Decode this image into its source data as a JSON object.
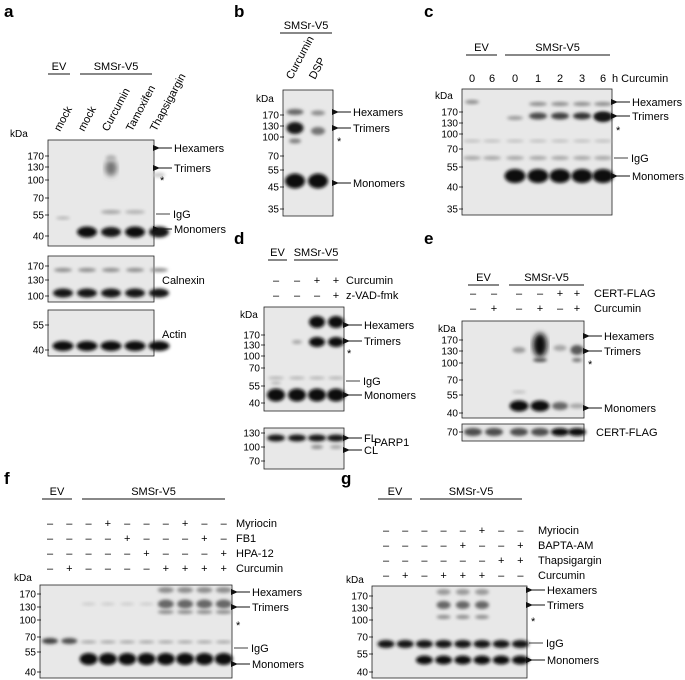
{
  "panels": {
    "a": {
      "label": "a",
      "groups": [
        "EV",
        "SMSr-V5"
      ],
      "lanes": [
        "mock",
        "mock",
        "Curcumin",
        "Tamoxifen",
        "Thapsigargin"
      ],
      "kda": "kDa",
      "ticks_main": [
        "170",
        "130",
        "100",
        "70",
        "55",
        "40"
      ],
      "bands": [
        "Hexamers",
        "Trimers",
        "*",
        "IgG",
        "Monomers"
      ],
      "sub1_ticks": [
        "170",
        "130",
        "100"
      ],
      "sub1_label": "Calnexin",
      "sub2_ticks": [
        "55",
        "40"
      ],
      "sub2_label": "Actin"
    },
    "b": {
      "label": "b",
      "group": "SMSr-V5",
      "lanes": [
        "Curcumin",
        "DSP"
      ],
      "kda": "kDa",
      "ticks": [
        "170",
        "130",
        "100",
        "70",
        "55",
        "45",
        "35"
      ],
      "bands": [
        "Hexamers",
        "Trimers",
        "*",
        "Monomers"
      ]
    },
    "c": {
      "label": "c",
      "groups": [
        "EV",
        "SMSr-V5"
      ],
      "times": [
        "0",
        "6",
        "0",
        "1",
        "2",
        "3",
        "6"
      ],
      "time_label": "h Curcumin",
      "kda": "kDa",
      "ticks": [
        "170",
        "130",
        "100",
        "70",
        "55",
        "40",
        "35"
      ],
      "bands": [
        "Hexamers",
        "Trimers",
        "*",
        "IgG",
        "Monomers"
      ]
    },
    "d": {
      "label": "d",
      "groups": [
        "EV",
        "SMSr-V5"
      ],
      "conditions": [
        {
          "name": "Curcumin",
          "signs": [
            "–",
            "–",
            "+",
            "+"
          ]
        },
        {
          "name": "z-VAD-fmk",
          "signs": [
            "–",
            "–",
            "–",
            "+"
          ]
        }
      ],
      "kda": "kDa",
      "ticks": [
        "170",
        "130",
        "100",
        "70",
        "55",
        "40"
      ],
      "bands": [
        "Hexamers",
        "Trimers",
        "*",
        "IgG",
        "Monomers"
      ],
      "sub_ticks": [
        "130",
        "100",
        "70"
      ],
      "sub_bands": [
        "FL",
        "CL"
      ],
      "sub_label": "PARP1"
    },
    "e": {
      "label": "e",
      "groups": [
        "EV",
        "SMSr-V5"
      ],
      "conditions": [
        {
          "name": "CERT-FLAG",
          "signs": [
            "–",
            "–",
            "–",
            "–",
            "+",
            "+"
          ]
        },
        {
          "name": "Curcumin",
          "signs": [
            "–",
            "+",
            "–",
            "+",
            "–",
            "+"
          ]
        }
      ],
      "kda": "kDa",
      "ticks": [
        "170",
        "130",
        "100",
        "70",
        "55",
        "40"
      ],
      "bands": [
        "Hexamers",
        "Trimers",
        "*",
        "Monomers"
      ],
      "sub_ticks": [
        "70"
      ],
      "sub_label": "CERT-FLAG"
    },
    "f": {
      "label": "f",
      "groups": [
        "EV",
        "SMSr-V5"
      ],
      "conditions": [
        {
          "name": "Myriocin",
          "signs": [
            "–",
            "–",
            "–",
            "+",
            "–",
            "–",
            "–",
            "+",
            "–",
            "–"
          ]
        },
        {
          "name": "FB1",
          "signs": [
            "–",
            "–",
            "–",
            "–",
            "+",
            "–",
            "–",
            "–",
            "+",
            "–"
          ]
        },
        {
          "name": "HPA-12",
          "signs": [
            "–",
            "–",
            "–",
            "–",
            "–",
            "+",
            "–",
            "–",
            "–",
            "+"
          ]
        },
        {
          "name": "Curcumin",
          "signs": [
            "–",
            "+",
            "–",
            "–",
            "–",
            "–",
            "+",
            "+",
            "+",
            "+"
          ]
        }
      ],
      "kda": "kDa",
      "ticks": [
        "170",
        "130",
        "100",
        "70",
        "55",
        "40"
      ],
      "bands": [
        "Hexamers",
        "Trimers",
        "*",
        "IgG",
        "Monomers"
      ]
    },
    "g": {
      "label": "g",
      "groups": [
        "EV",
        "SMSr-V5"
      ],
      "conditions": [
        {
          "name": "Myriocin",
          "signs": [
            "–",
            "–",
            "–",
            "–",
            "–",
            "+",
            "–",
            "–"
          ]
        },
        {
          "name": "BAPTA-AM",
          "signs": [
            "–",
            "–",
            "–",
            "–",
            "+",
            "–",
            "–",
            "+"
          ]
        },
        {
          "name": "Thapsigargin",
          "signs": [
            "–",
            "–",
            "–",
            "–",
            "–",
            "–",
            "+",
            "+"
          ]
        },
        {
          "name": "Curcumin",
          "signs": [
            "–",
            "+",
            "–",
            "+",
            "+",
            "+",
            "–",
            "–"
          ]
        }
      ],
      "kda": "kDa",
      "ticks": [
        "170",
        "130",
        "100",
        "70",
        "55",
        "40"
      ],
      "bands": [
        "Hexamers",
        "Trimers",
        "*",
        "IgG",
        "Monomers"
      ]
    }
  }
}
